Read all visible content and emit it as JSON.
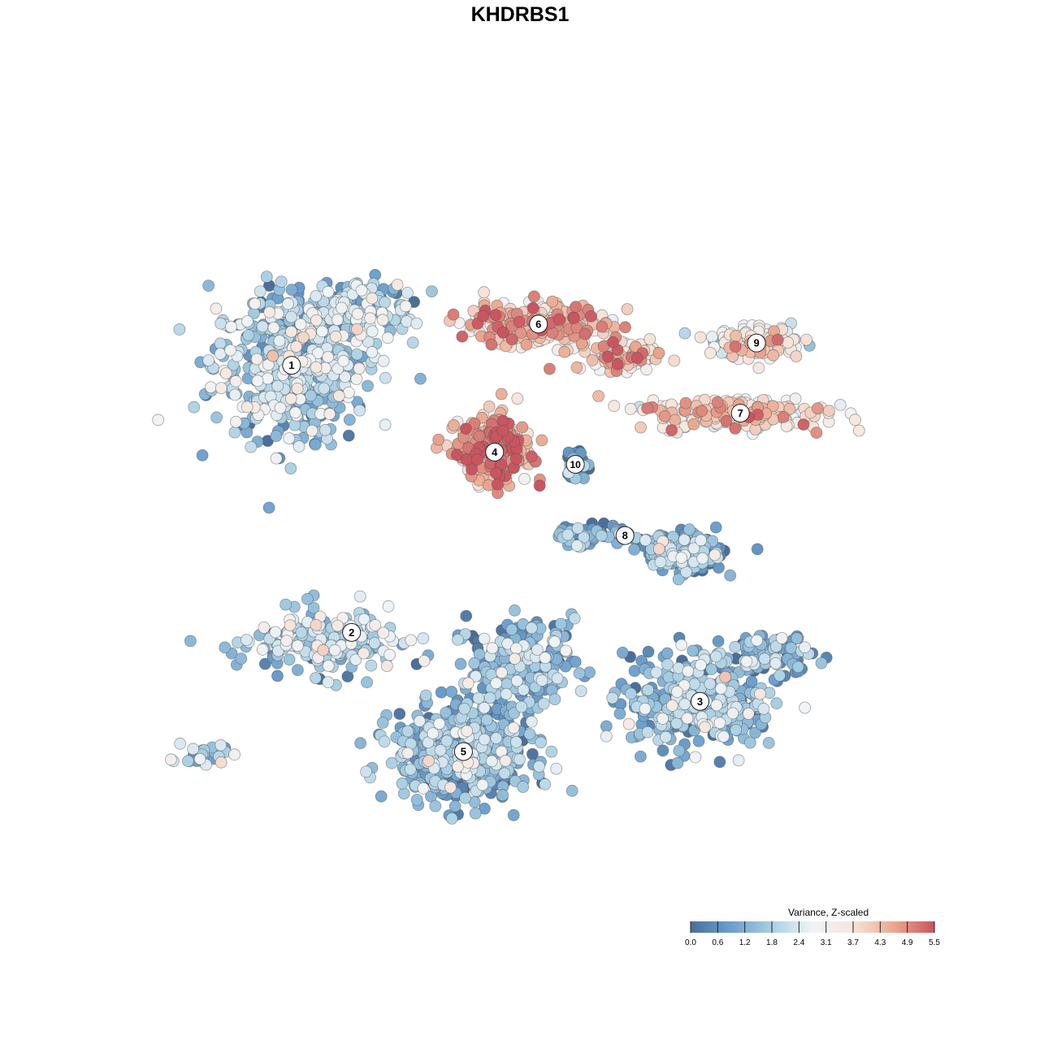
{
  "title": "KHDRBS1",
  "colors": {
    "low": "#4a6f9a",
    "mid": "#f7f7f7",
    "high": "#c95560",
    "stops": [
      "#4a6f9a",
      "#6c9fcd",
      "#a8cfe3",
      "#f0f4f7",
      "#f7e4da",
      "#eaa890",
      "#c95560"
    ]
  },
  "chart_data": {
    "type": "scatter",
    "title": "KHDRBS1",
    "xlabel": "",
    "ylabel": "",
    "grid": false,
    "legend_placement": "bottom-right",
    "colorbar": {
      "title": "Variance, Z-scaled",
      "ticks": [
        "0.0",
        "0.6",
        "1.2",
        "1.8",
        "2.4",
        "3.1",
        "3.7",
        "4.3",
        "4.9",
        "5.5"
      ],
      "range": [
        0.0,
        5.5
      ]
    },
    "clusters": [
      {
        "label": "1",
        "x": -19.8,
        "y": 13.9,
        "mean_value": 1.7
      },
      {
        "label": "2",
        "x": -14.6,
        "y": -10.1,
        "mean_value": 1.8
      },
      {
        "label": "3",
        "x": 15.6,
        "y": -16.3,
        "mean_value": 1.3
      },
      {
        "label": "4",
        "x": -2.2,
        "y": 6.1,
        "mean_value": 4.4
      },
      {
        "label": "5",
        "x": -4.9,
        "y": -20.8,
        "mean_value": 1.2
      },
      {
        "label": "6",
        "x": 1.6,
        "y": 17.6,
        "mean_value": 3.9
      },
      {
        "label": "7",
        "x": 19.1,
        "y": 9.6,
        "mean_value": 3.6
      },
      {
        "label": "8",
        "x": 9.1,
        "y": -1.4,
        "mean_value": 1.0
      },
      {
        "label": "9",
        "x": 20.5,
        "y": 15.9,
        "mean_value": 3.2
      },
      {
        "label": "10",
        "x": 4.8,
        "y": 5.0,
        "mean_value": 0.4
      }
    ]
  }
}
